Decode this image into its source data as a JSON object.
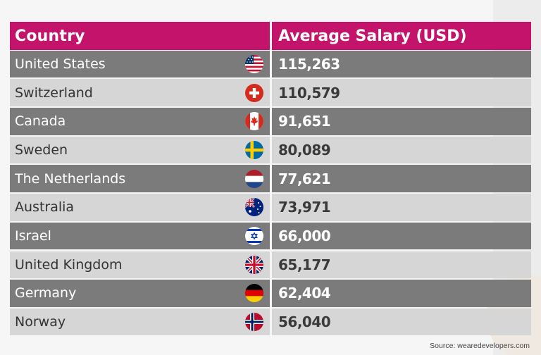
{
  "chart_data": {
    "type": "table",
    "columns": [
      "Country",
      "Average Salary (USD)"
    ],
    "rows": [
      {
        "country": "United States",
        "value": "115,263",
        "flag": "us-flag-icon"
      },
      {
        "country": "Switzerland",
        "value": "110,579",
        "flag": "switzerland-flag-icon"
      },
      {
        "country": "Canada",
        "value": "91,651",
        "flag": "canada-flag-icon"
      },
      {
        "country": "Sweden",
        "value": "80,089",
        "flag": "sweden-flag-icon"
      },
      {
        "country": "The Netherlands",
        "value": "77,621",
        "flag": "netherlands-flag-icon"
      },
      {
        "country": "Australia",
        "value": "73,971",
        "flag": "australia-flag-icon"
      },
      {
        "country": "Israel",
        "value": "66,000",
        "flag": "israel-flag-icon"
      },
      {
        "country": "United Kingdom",
        "value": "65,177",
        "flag": "uk-flag-icon"
      },
      {
        "country": "Germany",
        "value": "62,404",
        "flag": "germany-flag-icon"
      },
      {
        "country": "Norway",
        "value": "56,040",
        "flag": "norway-flag-icon"
      }
    ],
    "header_color": "#c4136b",
    "dark_row_color": "#7b7b7b",
    "light_row_color": "#d6d6d6"
  },
  "source": "Source: wearedevelopers.com"
}
